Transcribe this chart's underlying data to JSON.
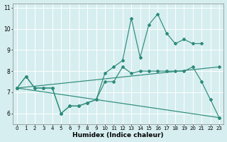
{
  "xlabel": "Humidex (Indice chaleur)",
  "background_color": "#d6eef0",
  "grid_color": "#ffffff",
  "line_color": "#2e8b7a",
  "xlim": [
    -0.5,
    23.5
  ],
  "ylim": [
    5.5,
    11.2
  ],
  "xticks": [
    0,
    1,
    2,
    3,
    4,
    5,
    6,
    7,
    8,
    9,
    10,
    11,
    12,
    13,
    14,
    15,
    16,
    17,
    18,
    19,
    20,
    21,
    22,
    23
  ],
  "yticks": [
    6,
    7,
    8,
    9,
    10,
    11
  ],
  "line1_x": [
    0,
    1,
    2,
    3,
    4,
    5,
    6,
    7,
    8,
    9,
    10,
    11,
    12,
    13,
    14,
    15,
    16,
    17,
    18,
    19,
    20,
    21,
    22,
    23
  ],
  "line1_y": [
    7.2,
    7.75,
    7.2,
    7.2,
    7.2,
    6.0,
    6.35,
    6.35,
    6.5,
    6.65,
    7.5,
    7.5,
    8.2,
    7.9,
    8.0,
    8.0,
    8.0,
    8.0,
    8.0,
    8.0,
    8.2,
    7.5,
    6.65,
    5.8
  ],
  "line2_x": [
    0,
    1,
    2,
    3,
    4,
    5,
    6,
    7,
    8,
    9,
    10,
    11,
    12,
    13,
    14,
    15,
    16,
    17,
    18,
    19,
    20,
    21
  ],
  "line2_y": [
    7.2,
    7.75,
    7.2,
    7.2,
    7.2,
    6.0,
    6.35,
    6.35,
    6.5,
    6.65,
    7.9,
    8.2,
    8.5,
    10.5,
    8.65,
    10.2,
    10.7,
    9.8,
    9.3,
    9.5,
    9.3,
    9.3
  ],
  "line3_x": [
    0,
    23
  ],
  "line3_y": [
    7.2,
    8.2
  ],
  "line4_x": [
    0,
    23
  ],
  "line4_y": [
    7.2,
    5.8
  ]
}
